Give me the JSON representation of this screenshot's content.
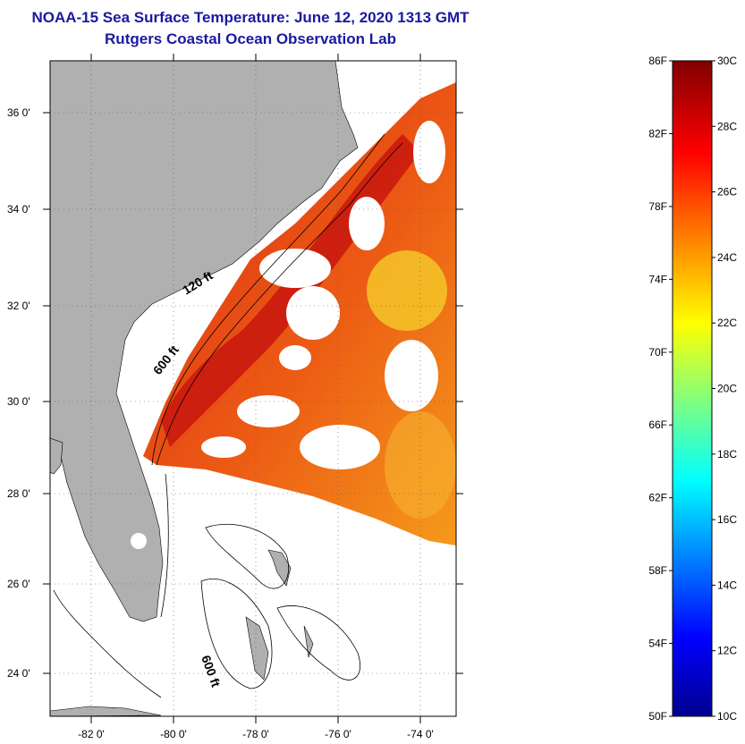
{
  "title": "NOAA-15 Sea Surface Temperature:  June 12, 2020 1313 GMT",
  "subtitle": "Rutgers Coastal Ocean Observation Lab",
  "map": {
    "lat_ticks": [
      "36 0'",
      "34 0'",
      "32 0'",
      "30 0'",
      "28 0'",
      "26 0'",
      "24 0'"
    ],
    "lon_ticks": [
      "-82 0'",
      "-80 0'",
      "-78 0'",
      "-76 0'",
      "-74 0'"
    ],
    "contour_labels": [
      "120 ft",
      "600 ft",
      "600 ft"
    ],
    "colors": {
      "land": "#b0b0b0",
      "ocean_no_data": "#ffffff",
      "contour": "#000000"
    }
  },
  "colorbar": {
    "f_labels": [
      "86F",
      "82F",
      "78F",
      "74F",
      "70F",
      "66F",
      "62F",
      "58F",
      "54F",
      "50F"
    ],
    "c_labels": [
      "30C",
      "28C",
      "26C",
      "24C",
      "22C",
      "20C",
      "18C",
      "16C",
      "14C",
      "12C",
      "10C"
    ],
    "range_f": [
      50,
      86
    ],
    "range_c": [
      10,
      30
    ],
    "colormap": "jet"
  }
}
